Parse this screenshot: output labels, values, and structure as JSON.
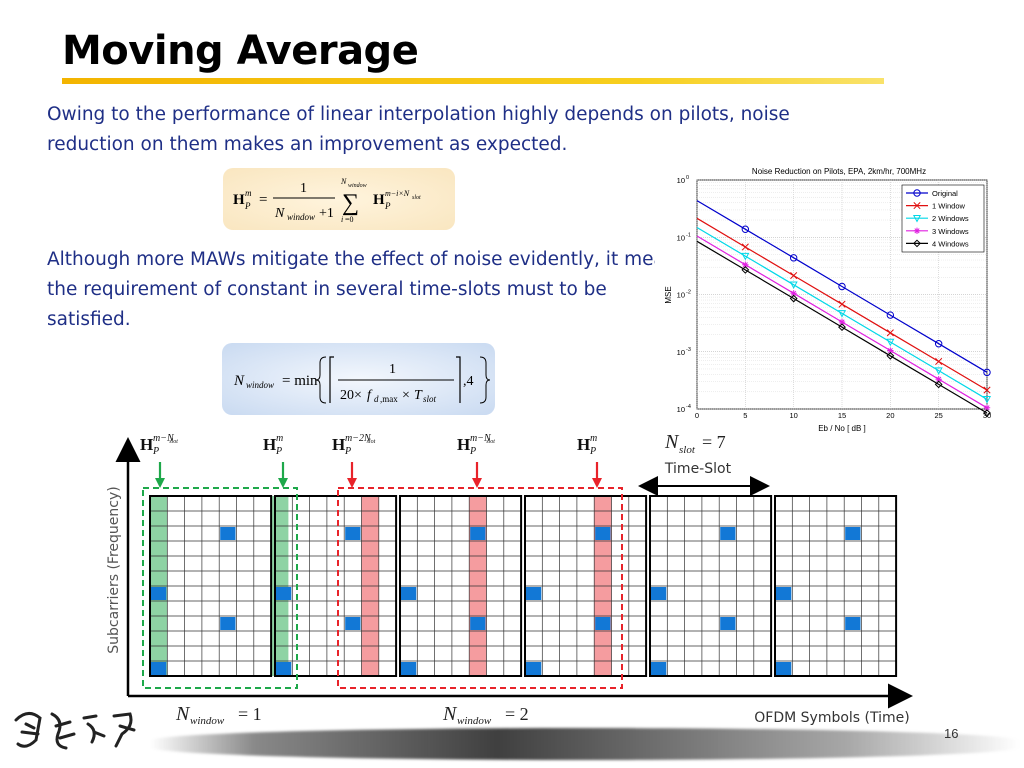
{
  "slide": {
    "title": "Moving Average",
    "paragraph1": "Owing to the performance of linear interpolation highly depends on pilots, noise reduction on them makes an improvement as expected.",
    "paragraph2": "Although more MAWs mitigate the effect of noise evidently, it means the requirement of constant in several time-slots must to be satisfied.",
    "page_number": "16"
  },
  "colors": {
    "title_rule": "#f3b400",
    "body_text": "#1f2f86",
    "pilot_blue": "#1278d6",
    "window1_green": "#1ea84a",
    "window2_red": "#e8232a"
  },
  "chart_data": {
    "type": "line",
    "title": "Noise Reduction on Pilots, EPA, 2km/hr, 700MHz",
    "xlabel": "Eb / No [ dB ]",
    "ylabel": "MSE",
    "xlim": [
      0,
      30
    ],
    "ylim_exponent": [
      -4,
      0
    ],
    "y_scale": "log",
    "x_ticks": [
      "0",
      "5",
      "10",
      "15",
      "20",
      "25",
      "30"
    ],
    "y_tick_base": "10",
    "y_tick_exponents": [
      "0",
      "-1",
      "-2",
      "-3",
      "-4"
    ],
    "grid": true,
    "legend_position": "top-right",
    "x": [
      5,
      10,
      15,
      20,
      25,
      30
    ],
    "series": [
      {
        "name": "Original",
        "color": "#0000cc",
        "marker": "circle",
        "values": [
          0.138,
          0.0437,
          0.0138,
          0.00437,
          0.00138,
          0.000437
        ],
        "start": 0.437
      },
      {
        "name": "1 Window",
        "color": "#e01010",
        "marker": "x",
        "values": [
          0.0676,
          0.0214,
          0.00676,
          0.00214,
          0.000676,
          0.000214
        ],
        "start": 0.214
      },
      {
        "name": "2 Windows",
        "color": "#00d8e8",
        "marker": "triangle-down",
        "values": [
          0.0468,
          0.0148,
          0.00468,
          0.00148,
          0.000468,
          0.000148
        ],
        "start": 0.148
      },
      {
        "name": "3 Windows",
        "color": "#e020e0",
        "marker": "star",
        "values": [
          0.0331,
          0.0105,
          0.00331,
          0.00105,
          0.000331,
          0.000105
        ],
        "start": 0.105
      },
      {
        "name": "4 Windows",
        "color": "#000000",
        "marker": "diamond",
        "values": [
          0.0269,
          0.0085,
          0.00269,
          0.00085,
          0.000269,
          8.5e-05
        ],
        "start": 0.085
      }
    ]
  },
  "diagram": {
    "y_axis_label": "Subcarriers (Frequency)",
    "x_axis_label": "OFDM Symbols (Time)",
    "time_slot_label": "Time-Slot",
    "nslot_value": "= 7",
    "nwindow1_value": "= 1",
    "nwindow2_value": "= 2",
    "pilot_labels": [
      {
        "sup": "m−N",
        "subsup": "slot"
      },
      {
        "sup": "m",
        "subsup": ""
      },
      {
        "sup": "m−2N",
        "subsup": "slot"
      },
      {
        "sup": "m−N",
        "subsup": "slot"
      },
      {
        "sup": "m",
        "subsup": ""
      }
    ]
  }
}
